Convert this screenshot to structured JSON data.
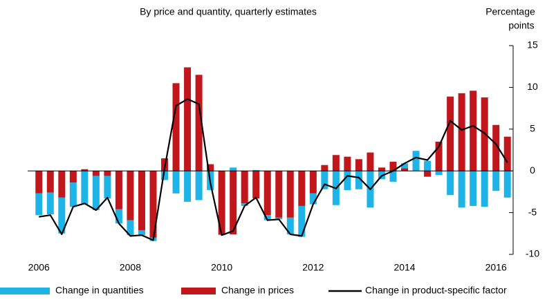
{
  "chart_data": {
    "type": "bar",
    "stacked": true,
    "subtitle": "By price and quantity, quarterly estimates",
    "y_label": [
      "Percentage",
      "points"
    ],
    "categories": [
      "2006",
      null,
      null,
      null,
      null,
      null,
      null,
      null,
      "2008",
      null,
      null,
      null,
      null,
      null,
      null,
      null,
      "2010",
      null,
      null,
      null,
      null,
      null,
      null,
      null,
      "2012",
      null,
      null,
      null,
      null,
      null,
      null,
      null,
      "2014",
      null,
      null,
      null,
      null,
      null,
      null,
      null,
      "2016",
      null
    ],
    "ylim": [
      -10,
      15
    ],
    "yticks": [
      -10,
      -5,
      0,
      5,
      10,
      15
    ],
    "y_axis_side": "right",
    "series": [
      {
        "name": "Change in prices",
        "color": "#c0161c",
        "type": "bar",
        "values": [
          -2.7,
          -2.6,
          -3.2,
          -1.4,
          0.2,
          -0.6,
          -0.6,
          -4.6,
          -5.9,
          -7.1,
          -8.0,
          1.5,
          10.5,
          12.4,
          11.5,
          0.8,
          -7.6,
          -7.6,
          -3.9,
          -3.3,
          -5.3,
          -5.6,
          -5.6,
          -4.2,
          -2.7,
          0.7,
          1.9,
          1.7,
          1.4,
          2.2,
          0.4,
          1.1,
          0.3,
          0,
          -0.7,
          3.5,
          8.9,
          9.3,
          9.6,
          8.8,
          5.5,
          4.1
        ]
      },
      {
        "name": "Change in quantities",
        "color": "#1eb4e8",
        "type": "bar",
        "values": [
          -2.6,
          -2.6,
          -4.3,
          -2.9,
          -4.0,
          -4.1,
          -2.7,
          -1.7,
          -1.8,
          -0.6,
          -0.4,
          -1.1,
          -2.7,
          -3.7,
          -3.5,
          -2.3,
          -0.1,
          0.4,
          -0.3,
          0.1,
          -0.6,
          -0.2,
          -2.0,
          -3.7,
          -1.3,
          -2.2,
          -4.1,
          -2.3,
          -2.2,
          -4.4,
          -1.0,
          -1.3,
          0.6,
          2.4,
          1.2,
          -0.5,
          -2.9,
          -4.4,
          -4.2,
          -4.3,
          -2.4,
          -3.2
        ]
      },
      {
        "name": "Change in product-specific factor",
        "color": "#000000",
        "type": "line",
        "values": [
          -5.5,
          -5.3,
          -7.6,
          -4.3,
          -3.9,
          -4.7,
          -3.2,
          -6.3,
          -7.8,
          -7.7,
          -8.3,
          0.3,
          7.8,
          8.6,
          8.0,
          -1.4,
          -7.7,
          -7.2,
          -4.2,
          -3.2,
          -5.9,
          -5.8,
          -7.6,
          -7.8,
          -4.0,
          -1.6,
          -2.1,
          -0.6,
          -0.8,
          -2.2,
          -0.6,
          0.0,
          0.9,
          1.6,
          1.3,
          2.9,
          6.0,
          4.9,
          5.4,
          4.5,
          3.2,
          1.0
        ]
      }
    ],
    "legend_order": [
      1,
      0,
      2
    ],
    "legend_position": "bottom"
  }
}
